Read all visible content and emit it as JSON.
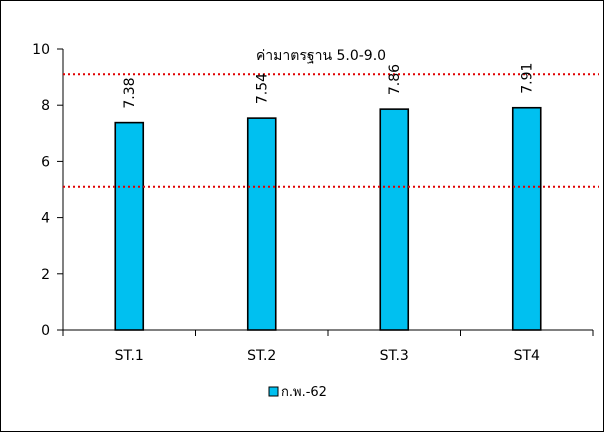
{
  "chart_data": {
    "type": "bar",
    "categories": [
      "ST.1",
      "ST.2",
      "ST.3",
      "ST4"
    ],
    "series": [
      {
        "name": "ก.พ.-62",
        "values": [
          7.38,
          7.54,
          7.86,
          7.91
        ],
        "color": "#00c0f0"
      }
    ],
    "data_labels": [
      "7.38",
      "7.54",
      "7.86",
      "7.91"
    ],
    "ylim": [
      0,
      10
    ],
    "yticks": [
      "0",
      "2",
      "4",
      "6",
      "8",
      "10"
    ],
    "ytick_values": [
      0,
      2,
      4,
      6,
      8,
      10
    ],
    "reference_lines": {
      "label": "ค่ามาตรฐาน 5.0-9.0",
      "values": [
        5.1,
        9.1
      ],
      "color": "#e00000",
      "style": "dotted"
    },
    "legend": {
      "placement": "bottom-center"
    },
    "grid": false
  }
}
